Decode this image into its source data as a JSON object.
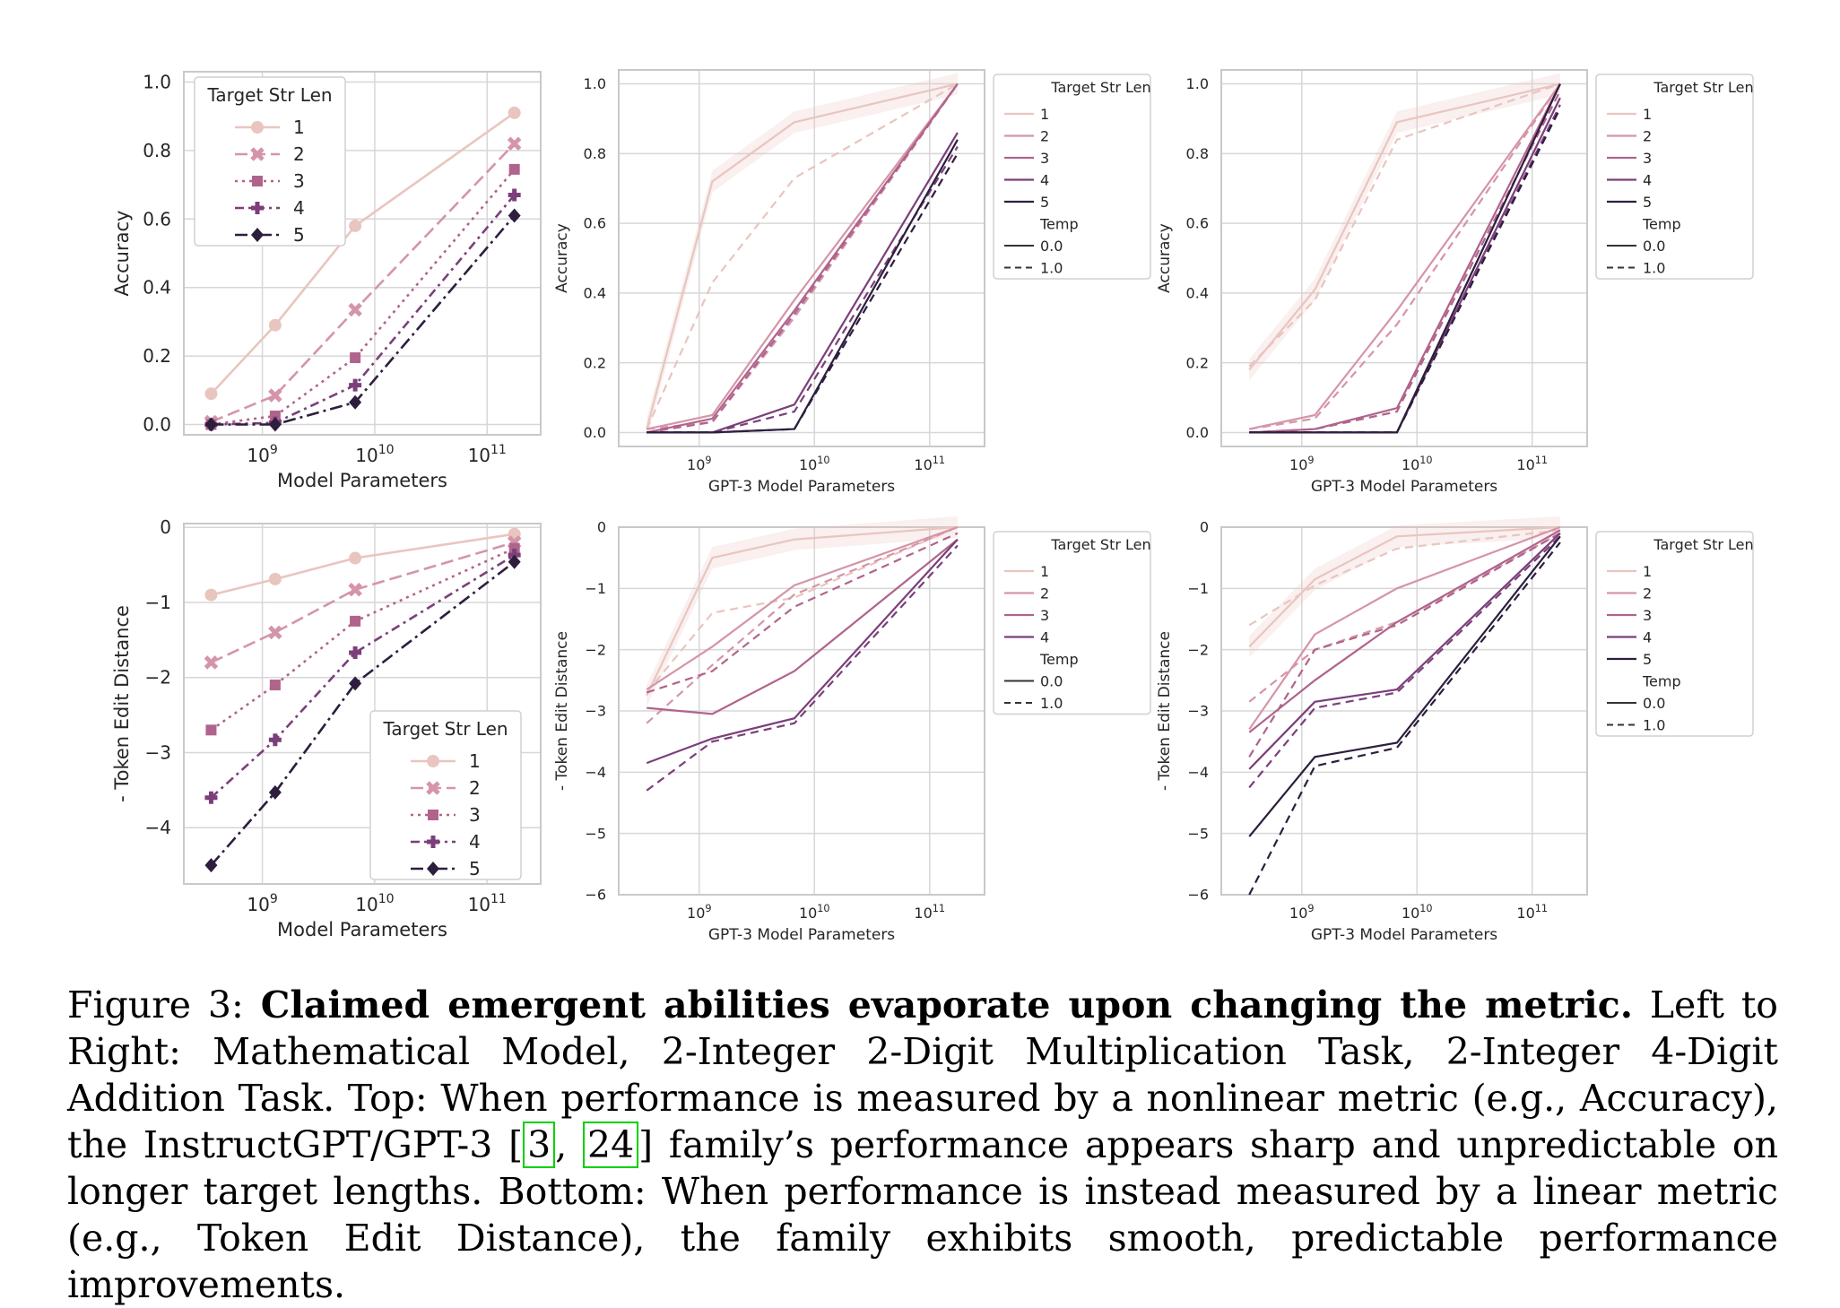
{
  "colors": {
    "1": "#e9c5bf",
    "2": "#d595a8",
    "3": "#b0648c",
    "4": "#7b3f7a",
    "5": "#2d1e3e",
    "grid": "#d7d7d7",
    "frame": "#c9c9c9"
  },
  "x_ticks": [
    "10^9",
    "10^10",
    "10^11"
  ],
  "legend_title_left": "Target Str Len",
  "legend_title_gpt": "Target Str Len",
  "legend_temp_title": "Temp",
  "legend_temp_values": [
    "0.0",
    "1.0"
  ],
  "chart_data": [
    {
      "id": "top-math",
      "type": "line",
      "title": "",
      "xlabel": "Model Parameters",
      "ylabel": "Accuracy",
      "xscale": "log",
      "xlim": [
        200000000.0,
        300000000000.0
      ],
      "ylim": [
        -0.03,
        1.03
      ],
      "yticks": [
        "1.0",
        "0.8",
        "0.6",
        "0.4",
        "0.2",
        "0.0"
      ],
      "x": [
        350000000.0,
        1300000000.0,
        6700000000.0,
        175000000000.0
      ],
      "series": [
        {
          "name": "1",
          "values": [
            0.09,
            0.29,
            0.58,
            0.91
          ]
        },
        {
          "name": "2",
          "values": [
            0.008,
            0.085,
            0.335,
            0.82
          ]
        },
        {
          "name": "3",
          "values": [
            0.0,
            0.025,
            0.195,
            0.745
          ]
        },
        {
          "name": "4",
          "values": [
            0.0,
            0.005,
            0.115,
            0.67
          ]
        },
        {
          "name": "5",
          "values": [
            0.0,
            0.0,
            0.065,
            0.61
          ]
        }
      ],
      "legend": "top-left"
    },
    {
      "id": "top-mult",
      "type": "line",
      "title": "",
      "xlabel": "GPT-3 Model Parameters",
      "ylabel": "Accuracy",
      "xscale": "log",
      "xlim": [
        200000000.0,
        300000000000.0
      ],
      "ylim": [
        -0.04,
        1.04
      ],
      "yticks": [
        "1.0",
        "0.8",
        "0.6",
        "0.4",
        "0.2",
        "0.0"
      ],
      "x": [
        350000000.0,
        1300000000.0,
        6700000000.0,
        175000000000.0
      ],
      "series": [
        {
          "name": "1",
          "temp": "0.0",
          "values": [
            0.01,
            0.72,
            0.89,
            1.0
          ]
        },
        {
          "name": "1",
          "temp": "1.0",
          "values": [
            0.01,
            0.43,
            0.73,
            1.0
          ]
        },
        {
          "name": "2",
          "temp": "0.0",
          "values": [
            0.01,
            0.05,
            0.38,
            1.0
          ]
        },
        {
          "name": "2",
          "temp": "1.0",
          "values": [
            0.01,
            0.03,
            0.33,
            1.0
          ]
        },
        {
          "name": "3",
          "temp": "0.0",
          "values": [
            0.0,
            0.04,
            0.35,
            1.0
          ]
        },
        {
          "name": "3",
          "temp": "1.0",
          "values": [
            0.0,
            0.03,
            0.34,
            1.0
          ]
        },
        {
          "name": "4",
          "temp": "0.0",
          "values": [
            0.0,
            0.0,
            0.08,
            0.86
          ]
        },
        {
          "name": "4",
          "temp": "1.0",
          "values": [
            0.0,
            0.0,
            0.06,
            0.82
          ]
        },
        {
          "name": "5",
          "temp": "0.0",
          "values": [
            0.0,
            0.0,
            0.01,
            0.84
          ]
        },
        {
          "name": "5",
          "temp": "1.0",
          "values": [
            0.0,
            0.0,
            0.01,
            0.8
          ]
        }
      ],
      "legend": "outside-right"
    },
    {
      "id": "top-add",
      "type": "line",
      "title": "",
      "xlabel": "GPT-3 Model Parameters",
      "ylabel": "Accuracy",
      "xscale": "log",
      "xlim": [
        200000000.0,
        300000000000.0
      ],
      "ylim": [
        -0.04,
        1.04
      ],
      "yticks": [
        "1.0",
        "0.8",
        "0.6",
        "0.4",
        "0.2",
        "0.0"
      ],
      "x": [
        350000000.0,
        1300000000.0,
        6700000000.0,
        175000000000.0
      ],
      "series": [
        {
          "name": "1",
          "temp": "0.0",
          "values": [
            0.18,
            0.41,
            0.89,
            1.0
          ]
        },
        {
          "name": "1",
          "temp": "1.0",
          "values": [
            0.19,
            0.38,
            0.84,
            1.0
          ]
        },
        {
          "name": "2",
          "temp": "0.0",
          "values": [
            0.01,
            0.05,
            0.35,
            1.0
          ]
        },
        {
          "name": "2",
          "temp": "1.0",
          "values": [
            0.01,
            0.04,
            0.31,
            1.0
          ]
        },
        {
          "name": "3",
          "temp": "0.0",
          "values": [
            0.0,
            0.01,
            0.07,
            1.0
          ]
        },
        {
          "name": "3",
          "temp": "1.0",
          "values": [
            0.0,
            0.01,
            0.06,
            0.98
          ]
        },
        {
          "name": "4",
          "temp": "0.0",
          "values": [
            0.0,
            0.0,
            0.0,
            0.96
          ]
        },
        {
          "name": "4",
          "temp": "1.0",
          "values": [
            0.0,
            0.0,
            0.0,
            0.94
          ]
        },
        {
          "name": "5",
          "temp": "0.0",
          "values": [
            0.0,
            0.0,
            0.0,
            1.0
          ]
        },
        {
          "name": "5",
          "temp": "1.0",
          "values": [
            0.0,
            0.0,
            0.0,
            0.93
          ]
        }
      ],
      "legend": "outside-right"
    },
    {
      "id": "bottom-math",
      "type": "line",
      "title": "",
      "xlabel": "Model Parameters",
      "ylabel": "- Token Edit Distance",
      "xscale": "log",
      "xlim": [
        200000000.0,
        300000000000.0
      ],
      "ylim": [
        -4.75,
        0.05
      ],
      "yticks": [
        "0",
        "−1",
        "−2",
        "−3",
        "−4"
      ],
      "x": [
        350000000.0,
        1300000000.0,
        6700000000.0,
        175000000000.0
      ],
      "series": [
        {
          "name": "1",
          "values": [
            -0.9,
            -0.69,
            -0.41,
            -0.09
          ]
        },
        {
          "name": "2",
          "values": [
            -1.8,
            -1.4,
            -0.83,
            -0.2
          ]
        },
        {
          "name": "3",
          "values": [
            -2.7,
            -2.1,
            -1.25,
            -0.28
          ]
        },
        {
          "name": "4",
          "values": [
            -3.6,
            -2.83,
            -1.67,
            -0.37
          ]
        },
        {
          "name": "5",
          "values": [
            -4.5,
            -3.53,
            -2.08,
            -0.46
          ]
        }
      ],
      "legend": "bottom-right"
    },
    {
      "id": "bottom-mult",
      "type": "line",
      "title": "",
      "xlabel": "GPT-3 Model Parameters",
      "ylabel": "- Token Edit Distance",
      "xscale": "log",
      "xlim": [
        200000000.0,
        300000000000.0
      ],
      "ylim": [
        -6.0,
        0.0
      ],
      "yticks": [
        "0",
        "−1",
        "−2",
        "−3",
        "−4",
        "−5",
        "−6"
      ],
      "x": [
        350000000.0,
        1300000000.0,
        6700000000.0,
        175000000000.0
      ],
      "series": [
        {
          "name": "1",
          "temp": "0.0",
          "values": [
            -2.75,
            -0.5,
            -0.2,
            0.0
          ]
        },
        {
          "name": "1",
          "temp": "1.0",
          "values": [
            -2.7,
            -1.4,
            -1.15,
            0.0
          ]
        },
        {
          "name": "2",
          "temp": "0.0",
          "values": [
            -2.65,
            -1.95,
            -0.95,
            0.0
          ]
        },
        {
          "name": "2",
          "temp": "1.0",
          "values": [
            -3.2,
            -2.25,
            -1.1,
            0.0
          ]
        },
        {
          "name": "3",
          "temp": "0.0",
          "values": [
            -2.95,
            -3.05,
            -2.35,
            -0.2
          ]
        },
        {
          "name": "3",
          "temp": "1.0",
          "values": [
            -2.7,
            -2.35,
            -1.3,
            -0.1
          ]
        },
        {
          "name": "4",
          "temp": "0.0",
          "values": [
            -3.85,
            -3.45,
            -3.12,
            -0.2
          ]
        },
        {
          "name": "4",
          "temp": "1.0",
          "values": [
            -4.3,
            -3.5,
            -3.2,
            -0.3
          ]
        }
      ],
      "legend": "outside-right"
    },
    {
      "id": "bottom-add",
      "type": "line",
      "title": "",
      "xlabel": "GPT-3 Model Parameters",
      "ylabel": "- Token Edit Distance",
      "xscale": "log",
      "xlim": [
        200000000.0,
        300000000000.0
      ],
      "ylim": [
        -6.0,
        0.0
      ],
      "yticks": [
        "0",
        "−1",
        "−2",
        "−3",
        "−4",
        "−5",
        "−6"
      ],
      "x": [
        350000000.0,
        1300000000.0,
        6700000000.0,
        175000000000.0
      ],
      "series": [
        {
          "name": "1",
          "temp": "0.0",
          "values": [
            -1.95,
            -0.85,
            -0.15,
            0.0
          ]
        },
        {
          "name": "1",
          "temp": "1.0",
          "values": [
            -1.6,
            -0.95,
            -0.35,
            -0.05
          ]
        },
        {
          "name": "2",
          "temp": "0.0",
          "values": [
            -3.3,
            -1.75,
            -1.0,
            0.0
          ]
        },
        {
          "name": "2",
          "temp": "1.0",
          "values": [
            -2.85,
            -2.0,
            -1.55,
            -0.1
          ]
        },
        {
          "name": "3",
          "temp": "0.0",
          "values": [
            -3.35,
            -2.5,
            -1.55,
            -0.05
          ]
        },
        {
          "name": "3",
          "temp": "1.0",
          "values": [
            -3.75,
            -2.0,
            -1.6,
            -0.1
          ]
        },
        {
          "name": "4",
          "temp": "0.0",
          "values": [
            -3.95,
            -2.85,
            -2.65,
            -0.1
          ]
        },
        {
          "name": "4",
          "temp": "1.0",
          "values": [
            -4.25,
            -2.95,
            -2.7,
            -0.15
          ]
        },
        {
          "name": "5",
          "temp": "0.0",
          "values": [
            -5.05,
            -3.75,
            -3.52,
            -0.15
          ]
        },
        {
          "name": "5",
          "temp": "1.0",
          "values": [
            -6.0,
            -3.9,
            -3.6,
            -0.25
          ]
        }
      ],
      "legend": "outside-right"
    }
  ],
  "caption": {
    "label": "Figure 3: ",
    "bold": "Claimed emergent abilities evaporate upon changing the metric.",
    "text1": " Left to Right: Mathematical Model, 2-Integer 2-Digit Multiplication Task, 2-Integer 4-Digit Addition Task. Top: When performance is measured by a nonlinear metric (e.g., Accuracy), the InstructGPT/GPT-3 [",
    "cite1": "3",
    "sep": ", ",
    "cite2": "24",
    "text2": "] family’s performance appears sharp and unpredictable on longer target lengths. Bottom: When performance is instead measured by a linear metric (e.g., Token Edit Distance), the family exhibits smooth, predictable performance improvements."
  }
}
